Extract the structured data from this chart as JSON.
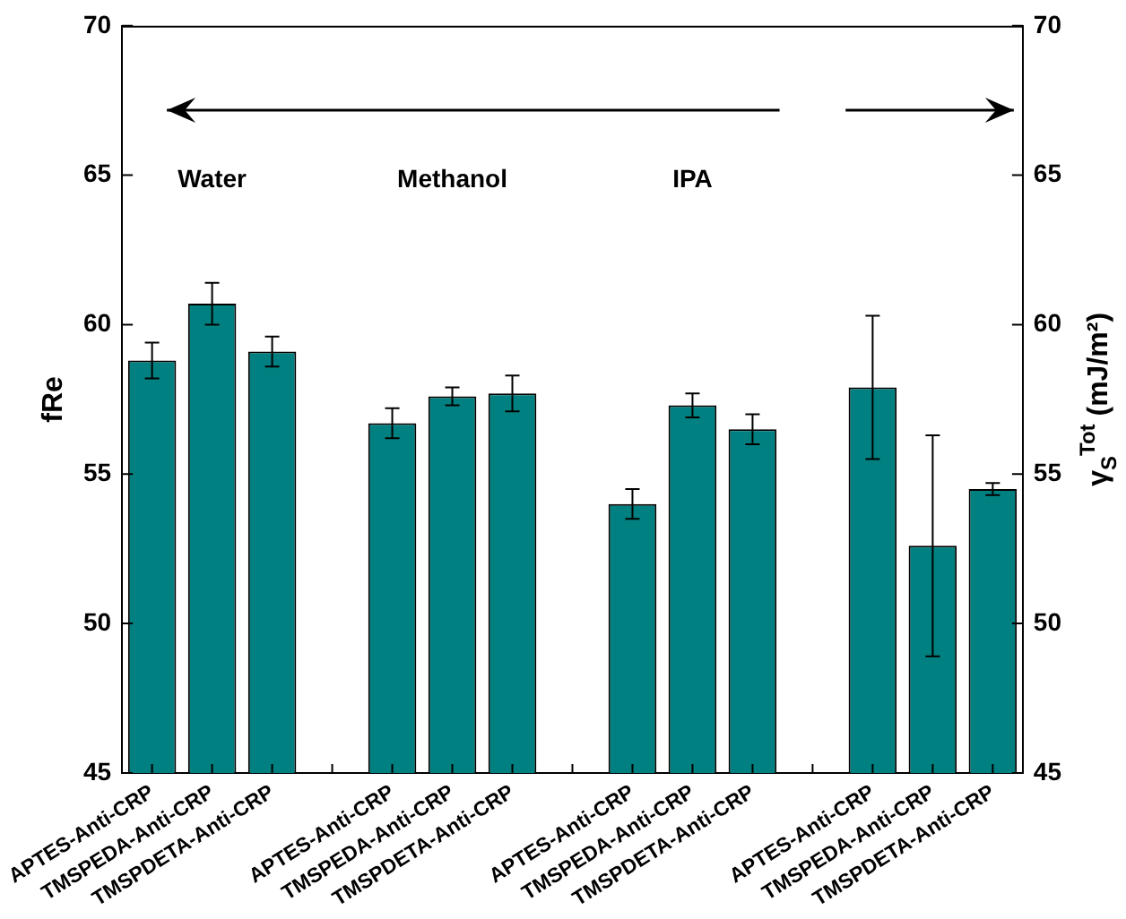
{
  "chart_data": {
    "type": "bar",
    "ylabel": "fRe",
    "y2label": "γ$_{S}$$^{Tot}$ (mJ/m²)",
    "categories": [
      "APTES-Anti-CRP",
      "TMSPEDA-Anti-CRP",
      "TMSPDETA-Anti-CRP",
      null,
      "APTES-Anti-CRP",
      "TMSPEDA-Anti-CRP",
      "TMSPDETA-Anti-CRP",
      null,
      "APTES-Anti-CRP",
      "TMSPEDA-Anti-CRP",
      "TMSPDETA-Anti-CRP",
      null,
      "APTES-Anti-CRP",
      "TMSPEDA-Anti-CRP",
      "TMSPDETA-Anti-CRP"
    ],
    "series": [
      {
        "color": "#008080",
        "values": [
          58.8,
          60.7,
          59.1,
          null,
          56.7,
          57.6,
          57.7,
          null,
          54.0,
          57.3,
          56.5,
          null,
          null,
          null,
          null
        ],
        "errors": [
          0.6,
          0.7,
          0.5,
          null,
          0.5,
          0.3,
          0.6,
          null,
          0.5,
          0.4,
          0.5,
          null,
          null,
          null,
          null
        ]
      },
      {
        "color": "#008080",
        "axis": "y2",
        "values": [
          null,
          null,
          null,
          null,
          null,
          null,
          null,
          null,
          null,
          null,
          null,
          null,
          57.9,
          52.6,
          54.5
        ],
        "errors": [
          null,
          null,
          null,
          null,
          null,
          null,
          null,
          null,
          null,
          null,
          null,
          null,
          2.4,
          3.7,
          0.2
        ]
      }
    ],
    "ylim": [
      45,
      70
    ],
    "yticks": [
      45,
      50,
      55,
      60,
      65,
      70
    ],
    "y2lim": [
      45,
      70
    ],
    "y2ticks": [
      45,
      50,
      55,
      60,
      65,
      70
    ],
    "annotations": [
      "Water",
      "Methanol",
      "IPA"
    ],
    "legend": false
  }
}
